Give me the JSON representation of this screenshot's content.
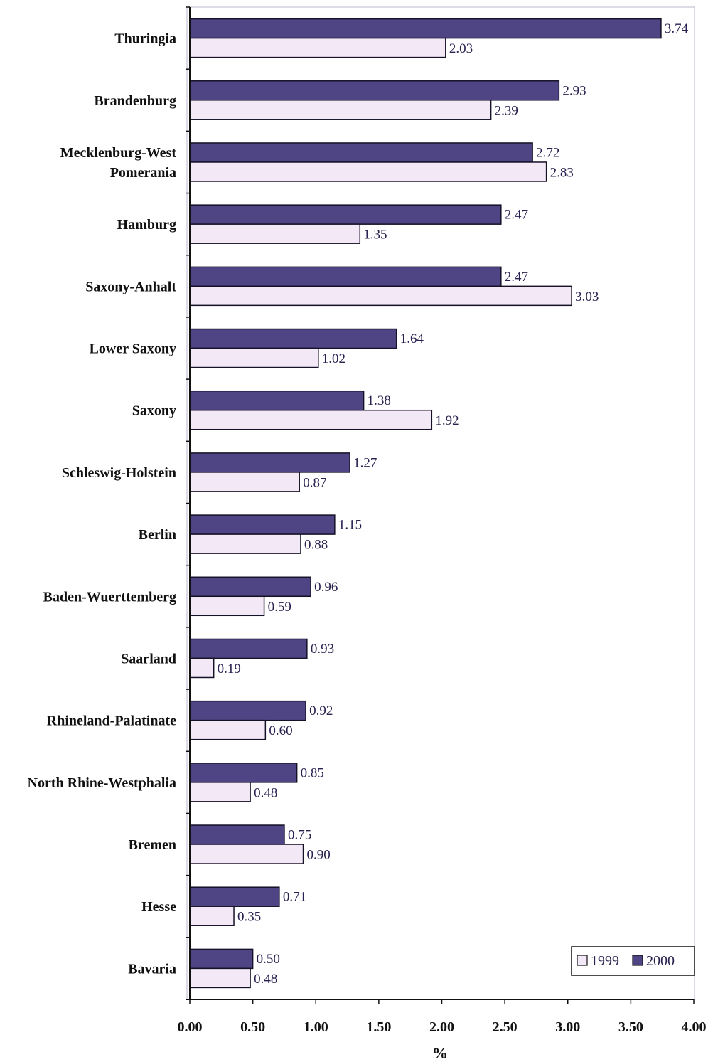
{
  "chart_data": {
    "type": "bar",
    "orientation": "horizontal",
    "categories": [
      "Thuringia",
      "Brandenburg",
      "Mecklenburg-West Pomerania",
      "Hamburg",
      "Saxony-Anhalt",
      "Lower Saxony",
      "Saxony",
      "Schleswig-Holstein",
      "Berlin",
      "Baden-Wuerttemberg",
      "Saarland",
      "Rhineland-Palatinate",
      "North Rhine-Westphalia",
      "Bremen",
      "Hesse",
      "Bavaria"
    ],
    "category_lines": [
      [
        "Thuringia"
      ],
      [
        "Brandenburg"
      ],
      [
        "Mecklenburg-West",
        "Pomerania"
      ],
      [
        "Hamburg"
      ],
      [
        "Saxony-Anhalt"
      ],
      [
        "Lower Saxony"
      ],
      [
        "Saxony"
      ],
      [
        "Schleswig-Holstein"
      ],
      [
        "Berlin"
      ],
      [
        "Baden-Wuerttemberg"
      ],
      [
        "Saarland"
      ],
      [
        "Rhineland-Palatinate"
      ],
      [
        "North Rhine-Westphalia"
      ],
      [
        "Bremen"
      ],
      [
        "Hesse"
      ],
      [
        "Bavaria"
      ]
    ],
    "series": [
      {
        "name": "2000",
        "color": "#4f4585",
        "values": [
          3.74,
          2.93,
          2.72,
          2.47,
          2.47,
          1.64,
          1.38,
          1.27,
          1.15,
          0.96,
          0.93,
          0.92,
          0.85,
          0.75,
          0.71,
          0.5
        ],
        "labels": [
          "3.74",
          "2.93",
          "2.72",
          "2.47",
          "2.47",
          "1.64",
          "1.38",
          "1.27",
          "1.15",
          "0.96",
          "0.93",
          "0.92",
          "0.85",
          "0.75",
          "0.71",
          "0.50"
        ]
      },
      {
        "name": "1999",
        "color": "#f3e8f6",
        "values": [
          2.03,
          2.39,
          2.83,
          1.35,
          3.03,
          1.02,
          1.92,
          0.87,
          0.88,
          0.59,
          0.19,
          0.6,
          0.48,
          0.9,
          0.35,
          0.48
        ],
        "labels": [
          "2.03",
          "2.39",
          "2.83",
          "1.35",
          "3.03",
          "1.02",
          "1.92",
          "0.87",
          "0.88",
          "0.59",
          "0.19",
          "0.60",
          "0.48",
          "0.90",
          "0.35",
          "0.48"
        ]
      }
    ],
    "xlim": [
      0,
      4
    ],
    "xticks": [
      "0.00",
      "0.50",
      "1.00",
      "1.50",
      "2.00",
      "2.50",
      "3.00",
      "3.50",
      "4.00"
    ],
    "xlabel": "%",
    "title": "",
    "grid": false,
    "legend": {
      "position": "bottom-right",
      "entries": [
        "1999",
        "2000"
      ]
    }
  }
}
